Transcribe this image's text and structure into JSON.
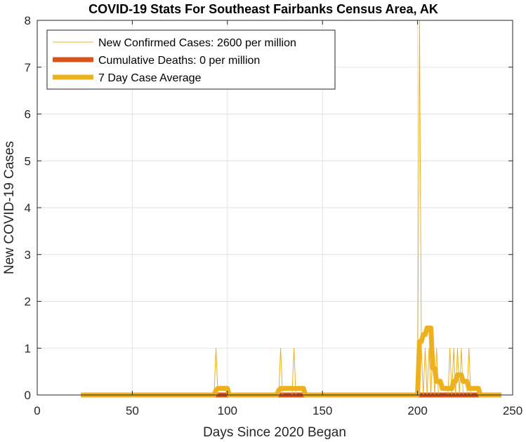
{
  "chart_data": {
    "type": "line",
    "title": "COVID-19 Stats For Southeast Fairbanks Census Area, AK",
    "xlabel": "Days Since 2020 Began",
    "ylabel": "New COVID-19 Cases",
    "xlim": [
      0,
      250
    ],
    "ylim": [
      0,
      8
    ],
    "xticks": [
      0,
      50,
      100,
      150,
      200,
      250
    ],
    "yticks": [
      0,
      1,
      2,
      3,
      4,
      5,
      6,
      7,
      8
    ],
    "grid": true,
    "legend_position": "top-left",
    "colors": {
      "new_cases": "#EDB120",
      "deaths": "#D95319",
      "avg": "#EDB120"
    },
    "series": [
      {
        "name": "New Confirmed Cases: 2600 per million",
        "style": "thin",
        "x": [
          23,
          93,
          94,
          95,
          127,
          128,
          129,
          134,
          135,
          136,
          200,
          201,
          202,
          203,
          204,
          205,
          206,
          207,
          208,
          209,
          210,
          211,
          216,
          217,
          218,
          219,
          220,
          221,
          222,
          223,
          224,
          225,
          226,
          227,
          228,
          229,
          230,
          231,
          232,
          233,
          244
        ],
        "y": [
          0,
          0,
          1,
          0,
          0,
          1,
          0,
          0,
          1,
          0,
          0,
          8,
          1,
          0,
          1,
          0,
          1,
          0,
          1,
          0,
          1,
          0,
          0,
          1,
          0,
          1,
          0,
          1,
          0,
          1,
          0,
          0,
          0,
          1,
          0,
          0,
          0,
          0,
          0,
          0,
          0
        ]
      },
      {
        "name": "Cumulative Deaths: 0 per million",
        "style": "thick",
        "x": [
          23,
          244
        ],
        "y": [
          0,
          0
        ]
      },
      {
        "name": "7 Day Case Average",
        "style": "thick",
        "x": [
          23,
          93,
          94,
          95,
          100,
          101,
          126,
          127,
          128,
          133,
          134,
          135,
          140,
          141,
          199,
          200,
          201,
          202,
          203,
          204,
          205,
          206,
          207,
          208,
          209,
          210,
          211,
          212,
          213,
          214,
          215,
          216,
          217,
          218,
          219,
          220,
          221,
          222,
          223,
          224,
          225,
          226,
          227,
          228,
          229,
          230,
          231,
          232,
          233,
          234,
          244
        ],
        "y": [
          0,
          0,
          0.1,
          0.14,
          0.14,
          0,
          0,
          0.1,
          0.14,
          0.14,
          0.14,
          0.14,
          0.14,
          0,
          0,
          0,
          1.14,
          1.14,
          1.29,
          1.29,
          1.43,
          1.43,
          1.43,
          0.57,
          0.57,
          0.29,
          0.29,
          0.29,
          0.14,
          0.14,
          0.14,
          0.14,
          0.14,
          0.14,
          0.29,
          0.29,
          0.43,
          0.43,
          0.43,
          0.29,
          0.29,
          0.29,
          0.14,
          0.14,
          0.14,
          0.14,
          0.14,
          0.14,
          0,
          0,
          0
        ]
      }
    ]
  }
}
